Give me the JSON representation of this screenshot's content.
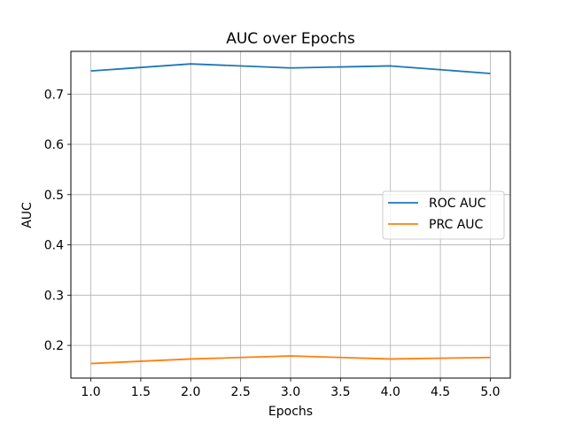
{
  "chart_data": {
    "type": "line",
    "title": "AUC over Epochs",
    "xlabel": "Epochs",
    "ylabel": "AUC",
    "x": [
      1,
      2,
      3,
      4,
      5
    ],
    "xlim": [
      0.8,
      5.2
    ],
    "ylim": [
      0.135,
      0.785
    ],
    "xticks": [
      "1.0",
      "1.5",
      "2.0",
      "2.5",
      "3.0",
      "3.5",
      "4.0",
      "4.5",
      "5.0"
    ],
    "yticks": [
      "0.2",
      "0.3",
      "0.4",
      "0.5",
      "0.6",
      "0.7"
    ],
    "grid": true,
    "legend_position": "center-right",
    "series": [
      {
        "name": "ROC AUC",
        "color": "#1f77b4",
        "values": [
          0.746,
          0.76,
          0.752,
          0.756,
          0.741
        ]
      },
      {
        "name": "PRC AUC",
        "color": "#ff7f0e",
        "values": [
          0.164,
          0.173,
          0.179,
          0.173,
          0.176
        ]
      }
    ]
  }
}
